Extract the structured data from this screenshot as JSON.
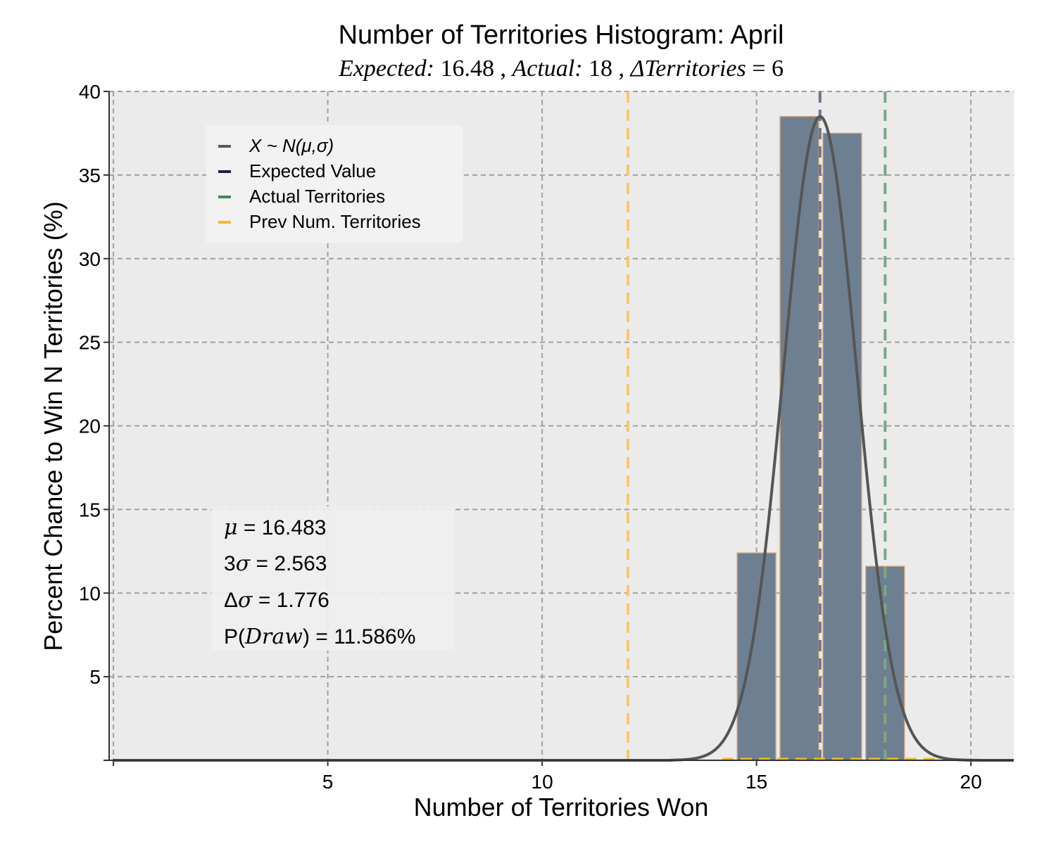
{
  "chart_data": {
    "type": "bar",
    "title": "Number of Territories Histogram: April",
    "subtitle": {
      "expected_label": "Expected:",
      "expected_value": "16.48",
      "actual_label": "Actual:",
      "actual_value": "18",
      "delta_label": "ΔTerritories",
      "delta_value": "6"
    },
    "xlabel": "Number of Territories Won",
    "ylabel": "Percent Chance to Win N Territories (%)",
    "xlim": [
      -0.1,
      21
    ],
    "ylim": [
      0,
      40
    ],
    "x_ticks": [
      5,
      10,
      15,
      20
    ],
    "y_ticks": [
      5,
      10,
      15,
      20,
      25,
      30,
      35,
      40
    ],
    "grid": true,
    "bars": [
      {
        "x": 15,
        "value": 12.4
      },
      {
        "x": 16,
        "value": 38.5
      },
      {
        "x": 17,
        "value": 37.5
      },
      {
        "x": 18,
        "value": 11.6
      }
    ],
    "bar_width": 0.9,
    "normal_curve": {
      "mu": 16.483,
      "sigma": 0.8543,
      "peak": 38.5
    },
    "vlines": [
      {
        "name": "expected",
        "x": 16.48,
        "color": "#6b7390"
      },
      {
        "name": "actual",
        "x": 18,
        "color": "#7aa882"
      },
      {
        "name": "previous",
        "x": 12,
        "color": "#f7c770"
      }
    ],
    "legend": {
      "placement": "upper-left",
      "items": [
        {
          "label": "X ~ N(μ,σ)",
          "color": "#5a5a5a"
        },
        {
          "label": "Expected Value",
          "color": "#1a2440"
        },
        {
          "label": "Actual Territories",
          "color": "#3d8a4f"
        },
        {
          "label": "Prev Num. Territories",
          "color": "#f5b731"
        }
      ]
    },
    "stats": {
      "mu_sym": "μ",
      "mu_value": " = 16.483",
      "three_sigma_prefix": "3",
      "three_sigma_sym": "σ",
      "three_sigma_value": " = 2.563",
      "delta_sigma_prefix": "Δ",
      "delta_sigma_sym": "σ",
      "delta_sigma_value": " = 1.776",
      "p_prefix": "P(",
      "p_sym": "Draw",
      "p_suffix": ")",
      "p_value": " = 11.586%"
    },
    "colors": {
      "plot_bg": "#ebebeb",
      "bar_fill": "#6e7f91",
      "bar_edge": "#c8a27a",
      "curve": "#555555"
    }
  }
}
